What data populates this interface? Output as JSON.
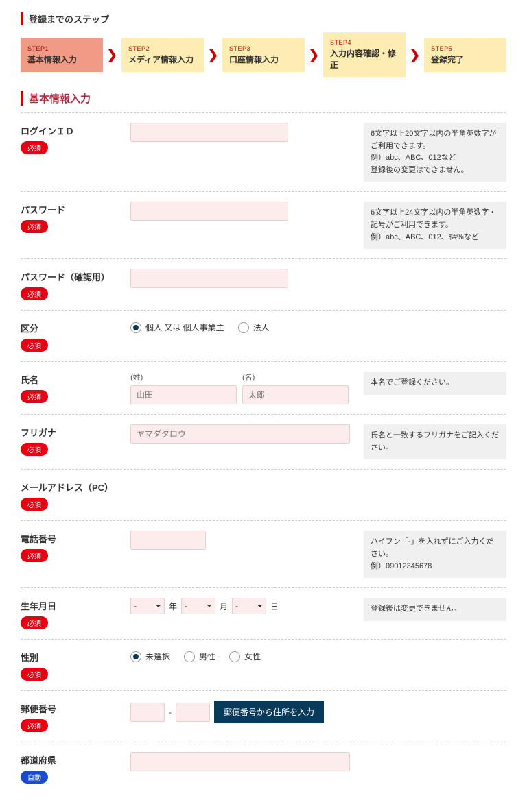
{
  "steps_title": "登録までのステップ",
  "steps": [
    {
      "num": "STEP1",
      "label": "基本情報入力",
      "active": true
    },
    {
      "num": "STEP2",
      "label": "メディア情報入力",
      "active": false
    },
    {
      "num": "STEP3",
      "label": "口座情報入力",
      "active": false
    },
    {
      "num": "STEP4",
      "label": "入力内容確認・修正",
      "active": false
    },
    {
      "num": "STEP5",
      "label": "登録完了",
      "active": false
    }
  ],
  "form_title": "基本情報入力",
  "badges": {
    "required": "必須",
    "auto": "自動"
  },
  "fields": {
    "login_id": {
      "label": "ログインＩＤ",
      "help": "6文字以上20文字以内の半角英数字がご利用できます。\n例）abc、ABC、012など\n登録後の変更はできません。"
    },
    "password": {
      "label": "パスワード",
      "help": "6文字以上24文字以内の半角英数字・記号がご利用できます。\n例）abc、ABC、012、$#%など"
    },
    "password_confirm": {
      "label": "パスワード（確認用）"
    },
    "category": {
      "label": "区分",
      "options": {
        "individual": "個人 又は 個人事業主",
        "corporate": "法人"
      }
    },
    "name": {
      "label": "氏名",
      "sub_last": "(姓)",
      "sub_first": "(名)",
      "placeholder_last": "山田",
      "placeholder_first": "太郎",
      "help": "本名でご登録ください。"
    },
    "furigana": {
      "label": "フリガナ",
      "placeholder": "ヤマダタロウ",
      "help": "氏名と一致するフリガナをご記入ください。"
    },
    "email": {
      "label": "メールアドレス（PC）"
    },
    "phone": {
      "label": "電話番号",
      "help": "ハイフン「-」を入れずにご入力ください。\n例）09012345678"
    },
    "birthdate": {
      "label": "生年月日",
      "year": "年",
      "month": "月",
      "day": "日",
      "dash": "-",
      "help": "登録後は変更できません。"
    },
    "gender": {
      "label": "性別",
      "options": {
        "none": "未選択",
        "male": "男性",
        "female": "女性"
      }
    },
    "zip": {
      "label": "郵便番号",
      "dash": "-",
      "button": "郵便番号から住所を入力"
    },
    "prefecture": {
      "label": "都道府県"
    }
  },
  "colors": {
    "accent": "#c00",
    "step_active": "#f19b86",
    "step_bg": "#fdedb3",
    "input_bg": "#fdecec",
    "badge_required": "#e60012",
    "badge_auto": "#1a4bcc",
    "btn_primary": "#0a3a5a"
  }
}
